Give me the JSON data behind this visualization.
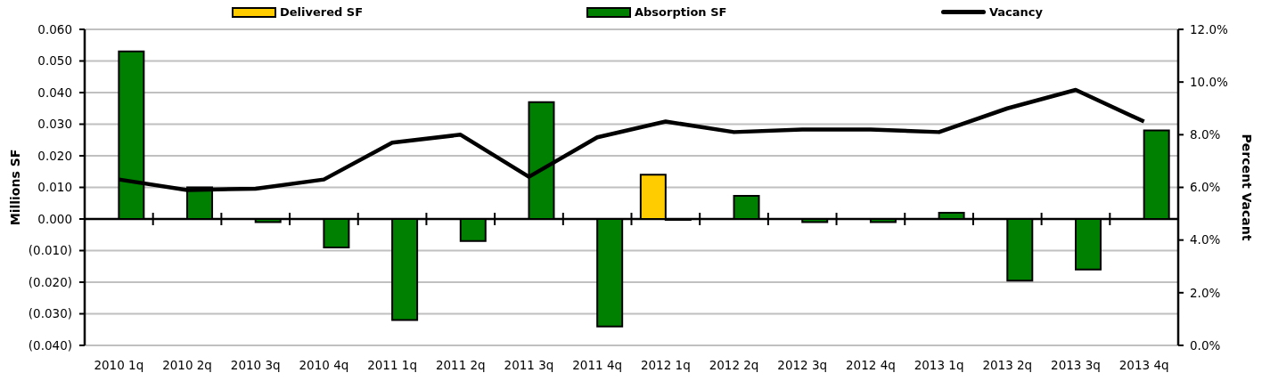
{
  "chart_data": {
    "type": "bar",
    "categories": [
      "2010 1q",
      "2010 2q",
      "2010 3q",
      "2010 4q",
      "2011 1q",
      "2011 2q",
      "2011 3q",
      "2011 4q",
      "2012 1q",
      "2012 2q",
      "2012 3q",
      "2012 4q",
      "2013 1q",
      "2013 2q",
      "2013 3q",
      "2013 4q"
    ],
    "series": [
      {
        "name": "Delivered SF",
        "color": "#ffcc00",
        "values": [
          null,
          null,
          null,
          null,
          null,
          null,
          null,
          null,
          0.014,
          null,
          null,
          null,
          null,
          null,
          null,
          null
        ]
      },
      {
        "name": "Absorption SF",
        "color": "#008000",
        "values": [
          0.053,
          0.01,
          -0.001,
          -0.009,
          -0.032,
          -0.007,
          0.037,
          -0.034,
          -0.0003,
          0.0073,
          -0.001,
          -0.001,
          0.002,
          -0.0195,
          -0.016,
          0.028
        ]
      },
      {
        "name": "Vacancy",
        "type": "line",
        "axis": "y2",
        "color": "#000000",
        "values": [
          6.3,
          5.9,
          5.95,
          6.3,
          7.7,
          8.0,
          6.4,
          7.9,
          8.5,
          8.1,
          8.2,
          8.2,
          8.1,
          9.0,
          9.7,
          8.5
        ]
      }
    ],
    "ylabel": "Millions SF",
    "y2label": "Percent Vacant",
    "ylim": [
      -0.04,
      0.06
    ],
    "yticks": [
      {
        "value": -0.04,
        "label": "(0.040)"
      },
      {
        "value": -0.03,
        "label": "(0.030)"
      },
      {
        "value": -0.02,
        "label": "(0.020)"
      },
      {
        "value": -0.01,
        "label": "(0.010)"
      },
      {
        "value": 0,
        "label": "0.000"
      },
      {
        "value": 0.01,
        "label": "0.010"
      },
      {
        "value": 0.02,
        "label": "0.020"
      },
      {
        "value": 0.03,
        "label": "0.030"
      },
      {
        "value": 0.04,
        "label": "0.040"
      },
      {
        "value": 0.05,
        "label": "0.050"
      },
      {
        "value": 0.06,
        "label": "0.060"
      }
    ],
    "y2lim": [
      0,
      12
    ],
    "y2ticks": [
      {
        "value": 0,
        "label": "0.0%"
      },
      {
        "value": 2,
        "label": "2.0%"
      },
      {
        "value": 4,
        "label": "4.0%"
      },
      {
        "value": 6,
        "label": "6.0%"
      },
      {
        "value": 8,
        "label": "8.0%"
      },
      {
        "value": 10,
        "label": "10.0%"
      },
      {
        "value": 12,
        "label": "12.0%"
      }
    ],
    "grid": "y",
    "legend": "top"
  }
}
